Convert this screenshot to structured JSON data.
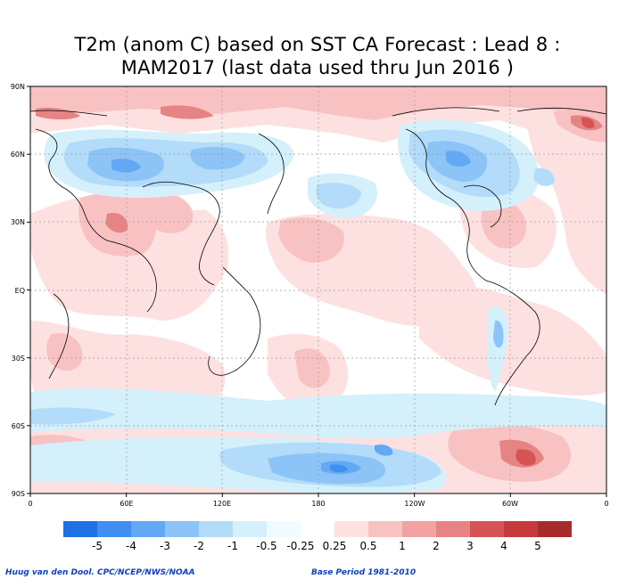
{
  "title": {
    "line1": "T2m (anom C) based on SST CA Forecast : Lead 8 :",
    "line2": "MAM2017 (last data used thru Jun 2016 )"
  },
  "map": {
    "lat_labels": [
      "90N",
      "60N",
      "30N",
      "EQ",
      "30S",
      "60S",
      "90S"
    ],
    "lon_labels": [
      "0",
      "60E",
      "120E",
      "180",
      "120W",
      "60W",
      "0"
    ]
  },
  "colorbar": {
    "levels": [
      "-5",
      "-4",
      "-3",
      "-2",
      "-1",
      "-0.5",
      "-0.25",
      "0.25",
      "0.5",
      "1",
      "2",
      "3",
      "4",
      "5"
    ],
    "colors": [
      "#1f6fe6",
      "#3f8ff0",
      "#63a8f4",
      "#8cc4f7",
      "#b2dcf9",
      "#d4f0fb",
      "#effcfd",
      "#ffffff",
      "#fde1e1",
      "#f9c2c2",
      "#f2a2a2",
      "#e68484",
      "#d65454",
      "#c43a3a",
      "#a82b2b"
    ]
  },
  "footer": {
    "credit": "Huug van den Dool. CPC/NCEP/NWS/NOAA",
    "base_period": "Base Period 1981-2010"
  }
}
